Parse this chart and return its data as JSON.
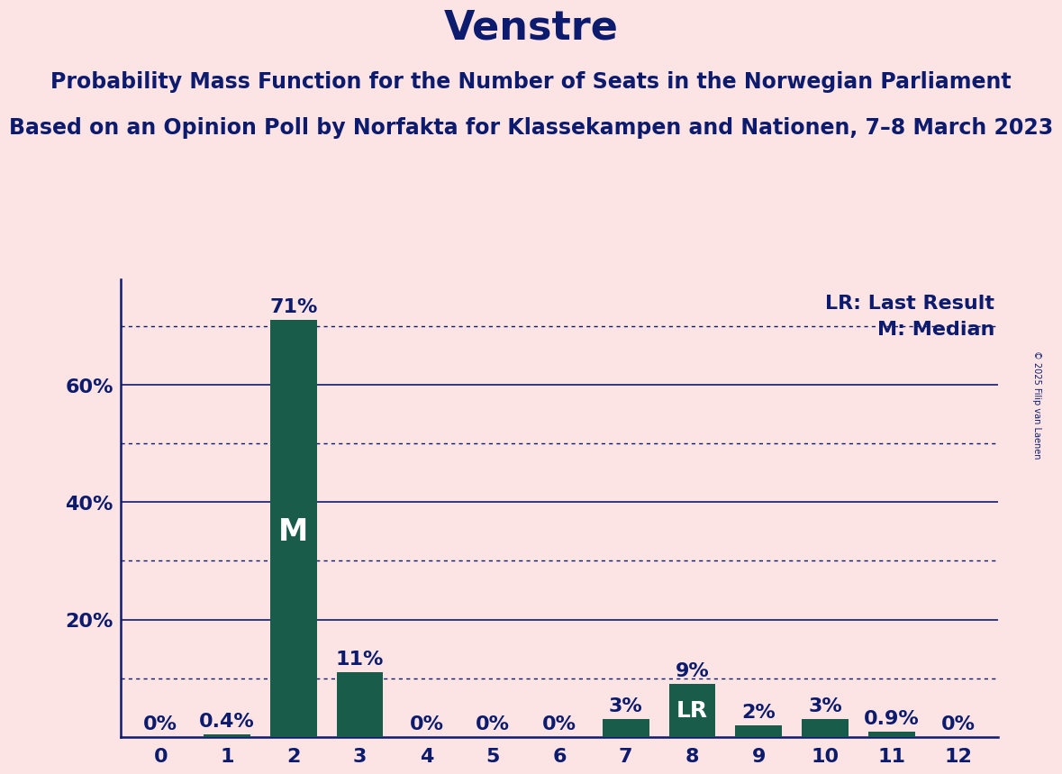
{
  "title": "Venstre",
  "subtitle1": "Probability Mass Function for the Number of Seats in the Norwegian Parliament",
  "subtitle2": "Based on an Opinion Poll by Norfakta for Klassekampen and Nationen, 7–8 March 2023",
  "copyright": "© 2025 Filip van Laenen",
  "categories": [
    0,
    1,
    2,
    3,
    4,
    5,
    6,
    7,
    8,
    9,
    10,
    11,
    12
  ],
  "values": [
    0.0,
    0.4,
    71.0,
    11.0,
    0.0,
    0.0,
    0.0,
    3.0,
    9.0,
    2.0,
    3.0,
    0.9,
    0.0
  ],
  "labels": [
    "0%",
    "0.4%",
    "71%",
    "11%",
    "0%",
    "0%",
    "0%",
    "3%",
    "9%",
    "2%",
    "3%",
    "0.9%",
    "0%"
  ],
  "bar_color": "#1a5c4a",
  "background_color": "#fce4e4",
  "text_color": "#0d1b6e",
  "median_bar": 2,
  "lr_bar": 8,
  "median_label": "M",
  "lr_label": "LR",
  "legend_lr": "LR: Last Result",
  "legend_m": "M: Median",
  "ylim": [
    0,
    78
  ],
  "ytick_labeled": [
    20,
    40,
    60
  ],
  "solid_lines": [
    20,
    40,
    60
  ],
  "dotted_lines": [
    10,
    30,
    50,
    70
  ],
  "title_fontsize": 32,
  "subtitle_fontsize": 17,
  "tick_fontsize": 16,
  "bar_label_fontsize": 16,
  "legend_fontsize": 16,
  "inside_label_fontsize_M": 24,
  "inside_label_fontsize_LR": 18
}
